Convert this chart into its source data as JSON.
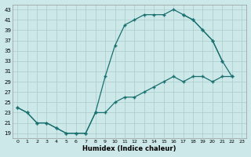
{
  "xlabel": "Humidex (Indice chaleur)",
  "bg_color": "#cce8e8",
  "line_color": "#1a7070",
  "grid_color": "#aacccc",
  "xlim": [
    -0.5,
    23.5
  ],
  "ylim": [
    18,
    44
  ],
  "yticks": [
    19,
    21,
    23,
    25,
    27,
    29,
    31,
    33,
    35,
    37,
    39,
    41,
    43
  ],
  "xticks": [
    0,
    1,
    2,
    3,
    4,
    5,
    6,
    7,
    8,
    9,
    10,
    11,
    12,
    13,
    14,
    15,
    16,
    17,
    18,
    19,
    20,
    21,
    22,
    23
  ],
  "s1x": [
    0,
    1,
    2,
    3,
    4,
    5,
    6,
    7,
    8,
    9,
    10,
    11,
    12,
    13,
    14,
    15,
    16,
    17,
    18,
    19,
    20,
    21
  ],
  "s1y": [
    24,
    23,
    21,
    21,
    20,
    19,
    19,
    19,
    23,
    30,
    36,
    40,
    41,
    42,
    42,
    42,
    43,
    42,
    41,
    39,
    37,
    33
  ],
  "s2x": [
    0,
    1,
    2,
    3,
    4,
    5,
    6,
    7,
    8,
    9,
    10,
    11,
    12,
    13,
    14,
    15,
    16,
    17,
    18,
    19,
    20,
    21,
    22
  ],
  "s2y": [
    24,
    23,
    21,
    21,
    20,
    19,
    19,
    19,
    23,
    23,
    25,
    26,
    26,
    27,
    28,
    29,
    30,
    29,
    30,
    30,
    29,
    30,
    30
  ],
  "s3x": [
    17,
    18,
    19,
    20,
    21,
    22
  ],
  "s3y": [
    42,
    41,
    39,
    37,
    33,
    30
  ]
}
